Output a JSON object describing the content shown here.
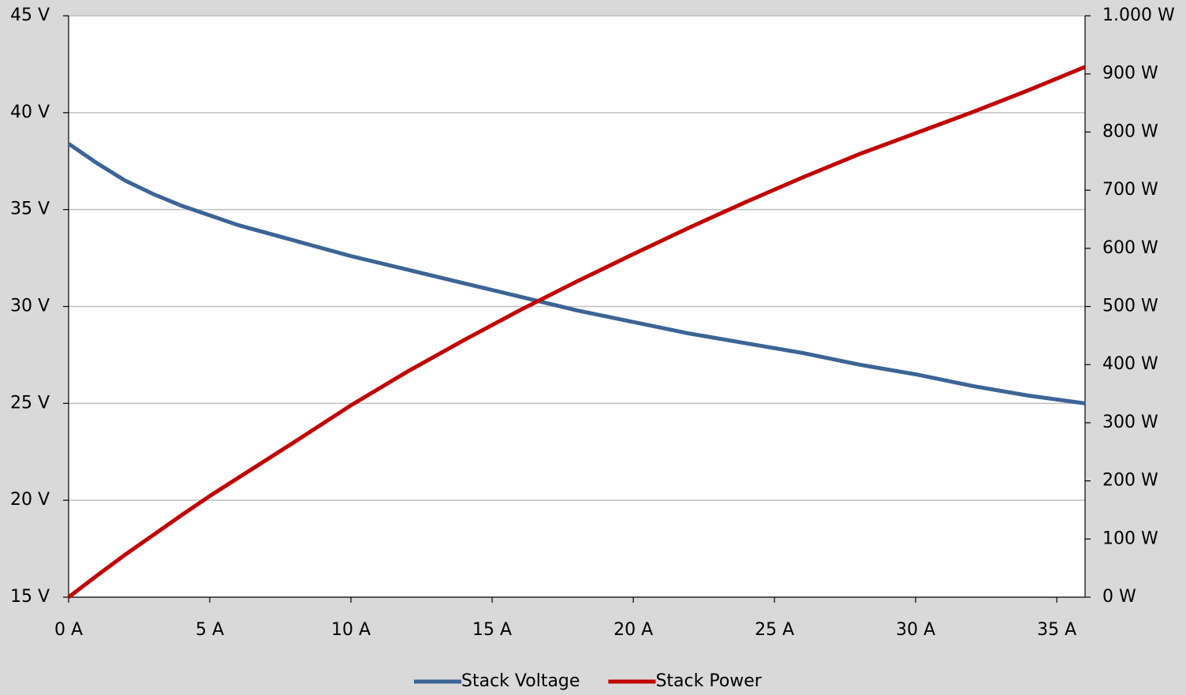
{
  "chart_data": {
    "type": "line",
    "x": [
      0,
      1,
      2,
      3,
      4,
      5,
      6,
      8,
      10,
      12,
      14,
      16,
      18,
      20,
      22,
      24,
      26,
      28,
      30,
      32,
      34,
      36
    ],
    "xlim": [
      0,
      36
    ],
    "xticks": [
      {
        "value": 0,
        "label": "0 A"
      },
      {
        "value": 5,
        "label": "5 A"
      },
      {
        "value": 10,
        "label": "10 A"
      },
      {
        "value": 15,
        "label": "15 A"
      },
      {
        "value": 20,
        "label": "20 A"
      },
      {
        "value": 25,
        "label": "25 A"
      },
      {
        "value": 30,
        "label": "30 A"
      },
      {
        "value": 35,
        "label": "35 A"
      }
    ],
    "ylim": [
      15,
      45
    ],
    "yticks": [
      {
        "value": 15,
        "label": "15 V"
      },
      {
        "value": 20,
        "label": "20 V"
      },
      {
        "value": 25,
        "label": "25 V"
      },
      {
        "value": 30,
        "label": "30 V"
      },
      {
        "value": 35,
        "label": "35 V"
      },
      {
        "value": 40,
        "label": "40 V"
      },
      {
        "value": 45,
        "label": "45 V"
      }
    ],
    "y2lim": [
      0,
      1000
    ],
    "y2ticks": [
      {
        "value": 0,
        "label": "0 W"
      },
      {
        "value": 100,
        "label": "100 W"
      },
      {
        "value": 200,
        "label": "200 W"
      },
      {
        "value": 300,
        "label": "300 W"
      },
      {
        "value": 400,
        "label": "400 W"
      },
      {
        "value": 500,
        "label": "500 W"
      },
      {
        "value": 600,
        "label": "600 W"
      },
      {
        "value": 700,
        "label": "700 W"
      },
      {
        "value": 800,
        "label": "800 W"
      },
      {
        "value": 900,
        "label": "900 W"
      },
      {
        "value": 1000,
        "label": "1.000 W"
      }
    ],
    "grid": true,
    "legend": "bottom",
    "series": [
      {
        "name": "Stack Voltage",
        "color": "#3c6496",
        "values": [
          38.4,
          37.4,
          36.5,
          35.8,
          35.2,
          34.7,
          34.2,
          33.4,
          32.6,
          31.9,
          31.2,
          30.5,
          29.8,
          29.2,
          28.6,
          28.1,
          27.6,
          27.0,
          26.5,
          25.9,
          25.4,
          25.0
        ]
      },
      {
        "name": "Stack Power",
        "color": "#c00000",
        "axis": "y2",
        "values": [
          0,
          37,
          73,
          107,
          141,
          174,
          205,
          267,
          330,
          388,
          442,
          494,
          543,
          590,
          636,
          680,
          722,
          762,
          798,
          834,
          872,
          912
        ]
      }
    ]
  }
}
